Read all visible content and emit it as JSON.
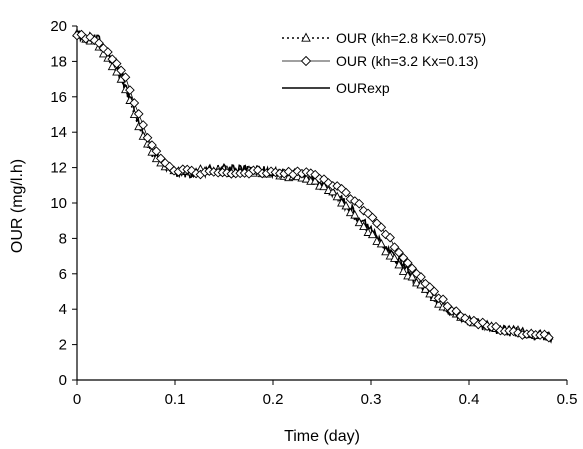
{
  "chart_data": {
    "type": "line",
    "title": "",
    "xlabel": "Time (day)",
    "ylabel": "OUR (mg/l.h)",
    "xlim": [
      0,
      0.5
    ],
    "ylim": [
      0,
      20
    ],
    "x_ticks": [
      0,
      0.1,
      0.2,
      0.3,
      0.4,
      0.5
    ],
    "x_tick_labels": [
      "0",
      "0.1",
      "0.2",
      "0.3",
      "0.4",
      "0.5"
    ],
    "y_ticks": [
      0,
      2,
      4,
      6,
      8,
      10,
      12,
      14,
      16,
      18,
      20
    ],
    "y_tick_labels": [
      "0",
      "2",
      "4",
      "6",
      "8",
      "10",
      "12",
      "14",
      "16",
      "18",
      "20"
    ],
    "grid": false,
    "legend_position": "top-right",
    "series": [
      {
        "name": "OUR (kh=2.8 Kx=0.075)",
        "line_style": "dotted",
        "marker": "triangle",
        "color": "#000000",
        "x": [
          0,
          0.02,
          0.04,
          0.05,
          0.06,
          0.07,
          0.08,
          0.09,
          0.1,
          0.12,
          0.15,
          0.2,
          0.24,
          0.26,
          0.28,
          0.3,
          0.32,
          0.34,
          0.36,
          0.38,
          0.4,
          0.43,
          0.46,
          0.485
        ],
        "y": [
          19.5,
          19.0,
          17.5,
          16.3,
          14.8,
          13.5,
          12.6,
          12.1,
          11.9,
          11.8,
          11.8,
          11.7,
          11.3,
          10.6,
          9.5,
          8.2,
          7.0,
          5.8,
          4.8,
          3.9,
          3.3,
          2.9,
          2.6,
          2.4
        ]
      },
      {
        "name": "OUR (kh=3.2 Kx=0.13)",
        "line_style": "solid-thin",
        "marker": "diamond",
        "color": "#000000",
        "x": [
          0,
          0.02,
          0.04,
          0.05,
          0.06,
          0.07,
          0.08,
          0.09,
          0.1,
          0.12,
          0.15,
          0.2,
          0.24,
          0.26,
          0.28,
          0.3,
          0.32,
          0.34,
          0.36,
          0.38,
          0.4,
          0.43,
          0.46,
          0.485
        ],
        "y": [
          19.5,
          19.2,
          18.0,
          17.0,
          15.5,
          14.0,
          12.9,
          12.2,
          11.9,
          11.7,
          11.7,
          11.8,
          11.6,
          11.1,
          10.3,
          9.2,
          7.9,
          6.5,
          5.2,
          4.1,
          3.4,
          2.9,
          2.6,
          2.4
        ]
      },
      {
        "name": "OURexp",
        "line_style": "solid",
        "marker": "none",
        "color": "#000000",
        "x": [
          0,
          0.02,
          0.04,
          0.05,
          0.06,
          0.07,
          0.08,
          0.09,
          0.1,
          0.12,
          0.15,
          0.2,
          0.24,
          0.26,
          0.28,
          0.3,
          0.32,
          0.34,
          0.36,
          0.38,
          0.4,
          0.43,
          0.46,
          0.485
        ],
        "y": [
          19.5,
          19.3,
          17.8,
          16.5,
          15.0,
          13.6,
          12.6,
          12.0,
          11.8,
          11.7,
          11.9,
          11.8,
          11.4,
          10.7,
          9.6,
          8.4,
          7.2,
          6.0,
          4.9,
          4.0,
          3.3,
          2.9,
          2.6,
          2.4
        ]
      }
    ]
  }
}
